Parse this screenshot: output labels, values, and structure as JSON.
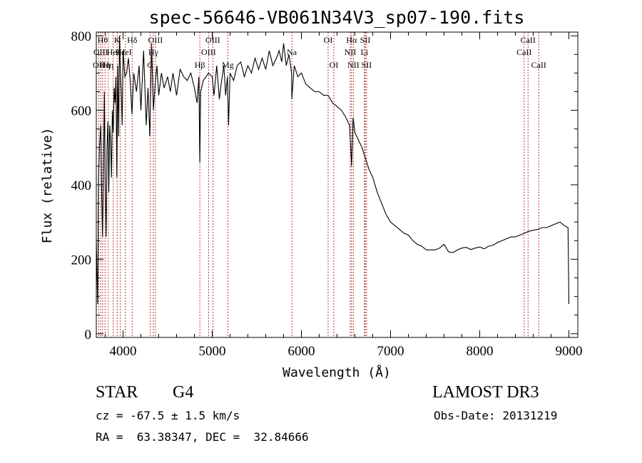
{
  "chart_data": {
    "type": "line",
    "title": "spec-56646-VB061N34V3_sp07-190.fits",
    "xlabel": "Wavelength (Å)",
    "ylabel": "Flux (relative)",
    "xlim": [
      3700,
      9100
    ],
    "ylim": [
      -10,
      810
    ],
    "xticks": [
      4000,
      5000,
      6000,
      7000,
      8000,
      9000
    ],
    "yticks": [
      0,
      200,
      400,
      600,
      800
    ],
    "grid": false,
    "line_color": "#000000",
    "marker_color": "#b22222",
    "series": [
      {
        "x": [
          3700,
          3715,
          3725,
          3735,
          3750,
          3760,
          3770,
          3780,
          3790,
          3800,
          3810,
          3820,
          3830,
          3840,
          3850,
          3860,
          3870,
          3880,
          3890,
          3900,
          3910,
          3920,
          3930,
          3940,
          3950,
          3960,
          3970,
          3980,
          3990,
          4000,
          4020,
          4040,
          4060,
          4080,
          4100,
          4120,
          4150,
          4180,
          4200,
          4230,
          4260,
          4280,
          4300,
          4320,
          4340,
          4360,
          4380,
          4400,
          4430,
          4460,
          4500,
          4530,
          4560,
          4600,
          4640,
          4680,
          4720,
          4760,
          4800,
          4830,
          4850,
          4861,
          4870,
          4900,
          4930,
          4960,
          5000,
          5020,
          5050,
          5080,
          5100,
          5130,
          5150,
          5170,
          5183,
          5200,
          5240,
          5280,
          5320,
          5360,
          5400,
          5440,
          5480,
          5520,
          5560,
          5600,
          5640,
          5680,
          5720,
          5750,
          5780,
          5800,
          5830,
          5860,
          5890,
          5893,
          5920,
          5960,
          6000,
          6050,
          6100,
          6150,
          6200,
          6250,
          6300,
          6350,
          6400,
          6450,
          6500,
          6540,
          6563,
          6580,
          6600,
          6640,
          6680,
          6720,
          6760,
          6800,
          6850,
          6900,
          6950,
          7000,
          7050,
          7100,
          7150,
          7200,
          7250,
          7300,
          7350,
          7400,
          7450,
          7500,
          7550,
          7600,
          7650,
          7700,
          7750,
          7800,
          7850,
          7900,
          7950,
          8000,
          8050,
          8100,
          8150,
          8200,
          8250,
          8300,
          8350,
          8400,
          8450,
          8500,
          8550,
          8600,
          8650,
          8700,
          8750,
          8800,
          8850,
          8900,
          8950,
          8990,
          9000
        ],
        "y": [
          250,
          80,
          420,
          500,
          560,
          380,
          260,
          430,
          650,
          400,
          260,
          500,
          570,
          380,
          560,
          520,
          420,
          600,
          540,
          660,
          620,
          690,
          420,
          720,
          530,
          800,
          700,
          650,
          560,
          760,
          690,
          700,
          740,
          680,
          590,
          700,
          650,
          720,
          600,
          760,
          560,
          660,
          530,
          780,
          600,
          670,
          720,
          640,
          700,
          660,
          690,
          650,
          700,
          640,
          710,
          690,
          680,
          700,
          660,
          620,
          690,
          460,
          650,
          680,
          690,
          700,
          690,
          640,
          720,
          630,
          670,
          720,
          640,
          690,
          560,
          700,
          680,
          720,
          730,
          690,
          720,
          700,
          740,
          710,
          740,
          710,
          760,
          720,
          740,
          760,
          730,
          780,
          720,
          750,
          700,
          630,
          720,
          690,
          700,
          670,
          660,
          650,
          650,
          640,
          640,
          620,
          610,
          600,
          580,
          560,
          450,
          580,
          540,
          520,
          500,
          470,
          440,
          420,
          380,
          350,
          320,
          300,
          290,
          280,
          270,
          265,
          250,
          240,
          235,
          225,
          225,
          225,
          230,
          240,
          220,
          218,
          225,
          230,
          232,
          226,
          230,
          233,
          228,
          235,
          238,
          245,
          250,
          255,
          260,
          260,
          265,
          270,
          275,
          278,
          280,
          285,
          285,
          290,
          295,
          300,
          290,
          285,
          80
        ]
      }
    ],
    "line_markers": [
      {
        "x": 3727,
        "label": "OII",
        "row": 3
      },
      {
        "x": 3750,
        "label": "OIII",
        "row": 2
      },
      {
        "x": 3771,
        "label": "Hθ",
        "row": 1
      },
      {
        "x": 3798,
        "label": "Hη",
        "row": 3
      },
      {
        "x": 3835,
        "label": "Hη",
        "row": 3
      },
      {
        "x": 3889,
        "label": "HeI",
        "row": 2
      },
      {
        "x": 3934,
        "label": "K",
        "row": 1
      },
      {
        "x": 3969,
        "label": "Hε",
        "row": 2
      },
      {
        "x": 4026,
        "label": "HeI",
        "row": 2
      },
      {
        "x": 4102,
        "label": "Hδ",
        "row": 1
      },
      {
        "x": 4305,
        "label": "G",
        "row": 3
      },
      {
        "x": 4340,
        "label": "Hγ",
        "row": 2
      },
      {
        "x": 4363,
        "label": "OIII",
        "row": 1
      },
      {
        "x": 4861,
        "label": "Hβ",
        "row": 3
      },
      {
        "x": 4959,
        "label": "OIII",
        "row": 2
      },
      {
        "x": 5007,
        "label": "OIII",
        "row": 1
      },
      {
        "x": 5175,
        "label": "Mg",
        "row": 3
      },
      {
        "x": 5893,
        "label": "Na",
        "row": 2
      },
      {
        "x": 6300,
        "label": "OI",
        "row": 1
      },
      {
        "x": 6364,
        "label": "OI",
        "row": 3
      },
      {
        "x": 6548,
        "label": "NII",
        "row": 2
      },
      {
        "x": 6563,
        "label": "Hα",
        "row": 1
      },
      {
        "x": 6583,
        "label": "NII",
        "row": 3
      },
      {
        "x": 6707,
        "label": "Li",
        "row": 2
      },
      {
        "x": 6716,
        "label": "SII",
        "row": 1
      },
      {
        "x": 6731,
        "label": "SII",
        "row": 3
      },
      {
        "x": 8498,
        "label": "CaII",
        "row": 2
      },
      {
        "x": 8542,
        "label": "CaII",
        "row": 1
      },
      {
        "x": 8662,
        "label": "CaII",
        "row": 3
      }
    ]
  },
  "info": {
    "object_class": "STAR",
    "subclass": "G4",
    "survey": "LAMOST DR3",
    "velocity": "cz = -67.5 ± 1.5 km/s",
    "obs_date": "Obs-Date: 20131219",
    "coords": "RA =  63.38347, DEC =  32.84666"
  }
}
